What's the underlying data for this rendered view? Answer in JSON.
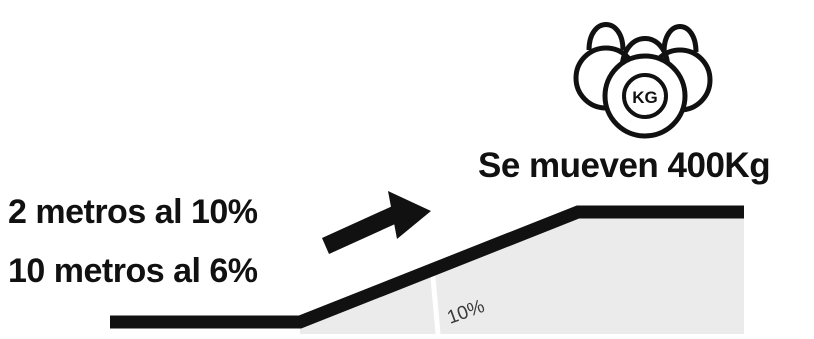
{
  "weights": {
    "unit_label": "KG",
    "icon": "kettlebells-icon"
  },
  "caption": "Se mueven 400Kg",
  "distances": [
    {
      "text": "2 metros al 10%"
    },
    {
      "text": "10 metros al 6%"
    }
  ],
  "ramp": {
    "grade_label": "10%"
  },
  "colors": {
    "ink": "#111111",
    "ramp_fill": "#ebebeb",
    "divider": "#ffffff"
  }
}
